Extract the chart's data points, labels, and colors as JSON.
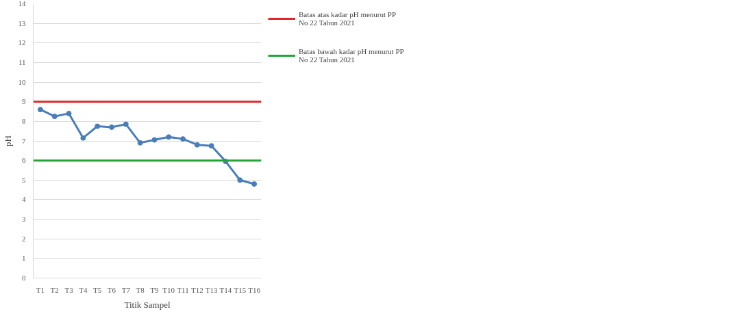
{
  "chart_data": {
    "type": "line",
    "xlabel": "Titik Sampel",
    "ylabel": "pH",
    "categories": [
      "T1",
      "T2",
      "T3",
      "T4",
      "T5",
      "T6",
      "T7",
      "T8",
      "T9",
      "T10",
      "T11",
      "T12",
      "T13",
      "T14",
      "T15",
      "T16"
    ],
    "series": [
      {
        "color": "#4a7ebb",
        "values": [
          8.6,
          8.25,
          8.4,
          7.15,
          7.75,
          7.7,
          7.85,
          6.9,
          7.05,
          7.2,
          7.1,
          6.8,
          6.75,
          5.95,
          5.0,
          4.8
        ]
      }
    ],
    "ylim": [
      0,
      14
    ],
    "yticks": [
      0,
      1,
      2,
      3,
      4,
      5,
      6,
      7,
      8,
      9,
      10,
      11,
      12,
      13,
      14
    ],
    "ref_lines": [
      {
        "axis": "y",
        "value": 9,
        "label": "Batas atas kadar pH menurut PP No 22 Tahun 2021",
        "color": "#e0262b"
      },
      {
        "axis": "y",
        "value": 6,
        "label": "Batas bawah kadar pH menurut PP No 22 Tahun 2021",
        "color": "#1fa637"
      }
    ],
    "grid": "y",
    "legend": "right",
    "marker": "circle",
    "line_style": "solid"
  }
}
